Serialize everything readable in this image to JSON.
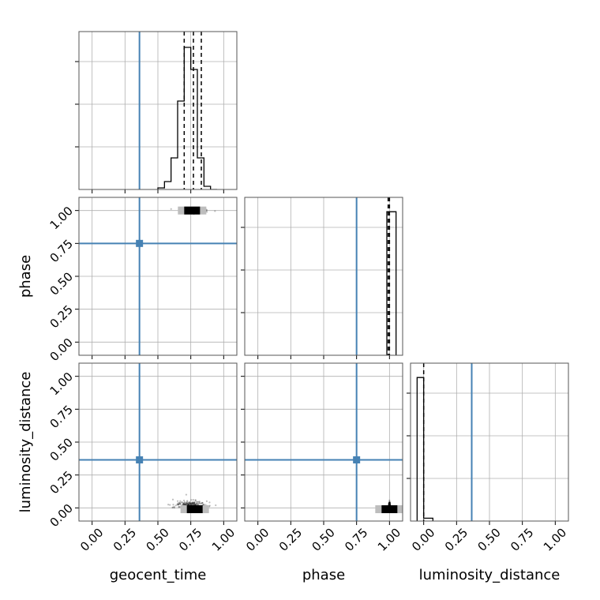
{
  "chart_data": {
    "type": "corner",
    "parameters": [
      "geocent_time",
      "phase",
      "luminosity_distance"
    ],
    "labels": {
      "x": [
        "geocent_time",
        "phase",
        "luminosity_distance"
      ],
      "y": [
        "",
        "phase",
        "luminosity_distance"
      ]
    },
    "tick_values": [
      0.0,
      0.25,
      0.5,
      0.75,
      1.0
    ],
    "tick_labels": [
      "0.00",
      "0.25",
      "0.50",
      "0.75",
      "1.00"
    ],
    "axis_ranges": {
      "geocent_time": [
        -0.1,
        1.1
      ],
      "phase": [
        -0.1,
        1.1
      ],
      "luminosity_distance": [
        -0.1,
        1.1
      ]
    },
    "truths": {
      "geocent_time": 0.36,
      "phase": 0.75,
      "luminosity_distance": 0.365
    },
    "truth_color": "#4682b4",
    "grid": true,
    "histograms": [
      {
        "parameter": "geocent_time",
        "bin_edges": [
          0.5,
          0.55,
          0.6,
          0.65,
          0.7,
          0.75,
          0.8,
          0.85,
          0.9,
          0.95
        ],
        "counts": [
          0.01,
          0.05,
          0.2,
          0.56,
          0.9,
          0.76,
          0.2,
          0.02,
          0.0
        ],
        "ylim": [
          0,
          1.0
        ],
        "quantiles": [
          0.7,
          0.77,
          0.83
        ]
      },
      {
        "parameter": "phase",
        "bin_edges": [
          0.98,
          1.05
        ],
        "counts": [
          1.0
        ],
        "ylim": [
          0,
          1.1
        ],
        "quantiles": [
          0.99,
          1.0
        ]
      },
      {
        "parameter": "luminosity_distance",
        "bin_edges": [
          -0.05,
          0.0,
          0.07
        ],
        "counts": [
          1.0,
          0.02
        ],
        "ylim": [
          0,
          1.1
        ],
        "quantiles": [
          0.0
        ]
      }
    ],
    "scatter_panels": [
      {
        "x": "geocent_time",
        "y": "phase",
        "center": [
          0.77,
          1.0
        ],
        "spread": [
          0.1,
          0.008
        ],
        "core": [
          0.76,
          1.0
        ]
      },
      {
        "x": "geocent_time",
        "y": "luminosity_distance",
        "center": [
          0.75,
          0.0
        ],
        "spread": [
          0.12,
          0.025
        ],
        "core": [
          0.78,
          -0.01
        ]
      },
      {
        "x": "phase",
        "y": "luminosity_distance",
        "center": [
          1.0,
          0.0
        ],
        "spread": [
          0.004,
          0.02
        ],
        "core": [
          1.0,
          -0.01
        ]
      }
    ]
  }
}
